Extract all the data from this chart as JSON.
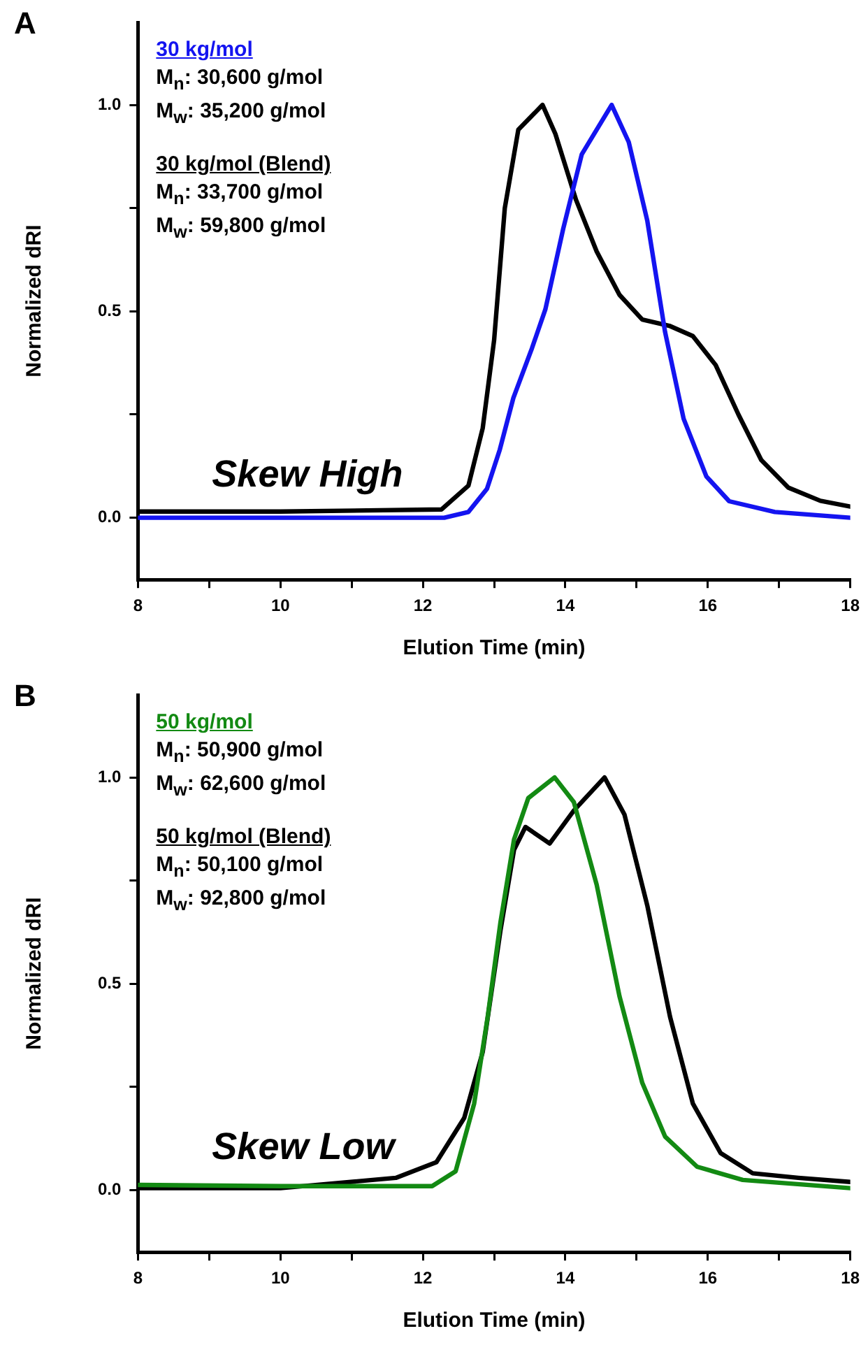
{
  "chart_data": [
    {
      "type": "line",
      "title": "A",
      "xlabel": "Elution Time (min)",
      "ylabel": "Normalized dRI",
      "xlim": [
        8,
        18
      ],
      "xticks": [
        8,
        {
          "value": 9,
          "label": null
        },
        10,
        {
          "value": 11,
          "label": null
        },
        12,
        {
          "value": 13,
          "label": null
        },
        14,
        {
          "value": 15,
          "label": null
        },
        16,
        {
          "value": 17,
          "label": null
        },
        18
      ],
      "ylim": [
        -0.15,
        1.2
      ],
      "yticks": [
        {
          "value": 0,
          "label": "0.0"
        },
        {
          "value": 0.25,
          "label": null
        },
        {
          "value": 0.5,
          "label": "0.5"
        },
        {
          "value": 0.75,
          "label": null
        },
        {
          "value": 1,
          "label": "1.0"
        }
      ],
      "grid": false,
      "legend": false,
      "marker": "none",
      "line_style": "solid",
      "annotations": [
        "M$_{n}$: 30,600 g/mol",
        "M$_{w}$: 35,200 g/mol",
        "M$_{n}$: 33,700 g/mol",
        "M$_{w}$: 59,800 g/mol",
        "Skew High"
      ],
      "series": [
        {
          "name": "30 kg/mol",
          "color": "#1414f0",
          "x": [
            8,
            10,
            12.3,
            12.64,
            12.9,
            13.08,
            13.27,
            13.53,
            13.72,
            13.97,
            14.23,
            14.65,
            14.89,
            15.15,
            15.4,
            15.66,
            15.98,
            16.3,
            16.94,
            18
          ],
          "values": [
            0,
            0,
            0,
            0.014,
            0.07,
            0.165,
            0.29,
            0.41,
            0.505,
            0.7,
            0.88,
            1,
            0.91,
            0.72,
            0.45,
            0.24,
            0.1,
            0.04,
            0.014,
            0
          ]
        },
        {
          "name": "30 kg/mol (Blend)",
          "color": "#000000",
          "x": [
            8,
            10,
            12.26,
            12.64,
            12.84,
            13,
            13.15,
            13.34,
            13.68,
            13.86,
            14.15,
            14.44,
            14.76,
            15.08,
            15.46,
            15.79,
            16.11,
            16.43,
            16.75,
            17.13,
            17.58,
            18
          ],
          "values": [
            0.015,
            0.015,
            0.02,
            0.078,
            0.217,
            0.43,
            0.75,
            0.94,
            1,
            0.93,
            0.77,
            0.645,
            0.54,
            0.48,
            0.465,
            0.44,
            0.37,
            0.25,
            0.14,
            0.073,
            0.041,
            0.027
          ]
        }
      ]
    },
    {
      "type": "line",
      "title": "B",
      "xlabel": "Elution Time (min)",
      "ylabel": "Normalized dRI",
      "xlim": [
        8,
        18
      ],
      "xticks": [
        8,
        {
          "value": 9,
          "label": null
        },
        10,
        {
          "value": 11,
          "label": null
        },
        12,
        {
          "value": 13,
          "label": null
        },
        14,
        {
          "value": 15,
          "label": null
        },
        16,
        {
          "value": 17,
          "label": null
        },
        18
      ],
      "ylim": [
        -0.15,
        1.2
      ],
      "yticks": [
        {
          "value": 0,
          "label": "0.0"
        },
        {
          "value": 0.25,
          "label": null
        },
        {
          "value": 0.5,
          "label": "0.5"
        },
        {
          "value": 0.75,
          "label": null
        },
        {
          "value": 1,
          "label": "1.0"
        }
      ],
      "grid": false,
      "legend": false,
      "marker": "none",
      "line_style": "solid",
      "annotations": [
        "M$_{n}$: 50,900 g/mol",
        "M$_{w}$: 62,600 g/mol",
        "M$_{n}$: 50,100 g/mol",
        "M$_{w}$: 92,800 g/mol",
        "Skew Low"
      ],
      "series": [
        {
          "name": "50 kg/mol",
          "color": "#138a13",
          "x": [
            8,
            10,
            12.13,
            12.46,
            12.72,
            12.91,
            13.09,
            13.28,
            13.48,
            13.85,
            14.12,
            14.44,
            14.76,
            15.08,
            15.4,
            15.85,
            16.49,
            18
          ],
          "values": [
            0.013,
            0.01,
            0.01,
            0.046,
            0.21,
            0.42,
            0.65,
            0.85,
            0.95,
            1,
            0.94,
            0.74,
            0.47,
            0.26,
            0.13,
            0.057,
            0.025,
            0.005
          ]
        },
        {
          "name": "50 kg/mol (Blend)",
          "color": "#000000",
          "x": [
            8,
            10,
            11.62,
            12.19,
            12.58,
            12.84,
            13.09,
            13.28,
            13.44,
            13.78,
            14.12,
            14.55,
            14.83,
            15.15,
            15.47,
            15.79,
            16.18,
            16.63,
            17.27,
            18
          ],
          "values": [
            0.005,
            0.005,
            0.03,
            0.068,
            0.175,
            0.335,
            0.63,
            0.825,
            0.88,
            0.84,
            0.92,
            1,
            0.91,
            0.69,
            0.42,
            0.21,
            0.09,
            0.041,
            0.03,
            0.02
          ]
        }
      ]
    }
  ]
}
